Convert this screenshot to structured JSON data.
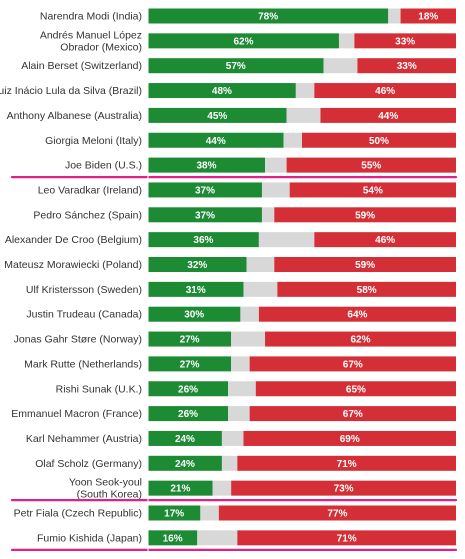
{
  "colors": {
    "approve": "#1d8a34",
    "neutral": "#d8d8d8",
    "disapprove": "#d42f36",
    "highlight": "#e0218a",
    "divider": "#ffffff"
  },
  "chart_data": {
    "type": "bar",
    "stacked": true,
    "orientation": "horizontal",
    "xlim": [
      0,
      100
    ],
    "highlighted": [
      "Joe Biden (U.S.)",
      "Yoon Seok-youl (South Korea)",
      "Fumio Kishida (Japan)"
    ],
    "categories": [
      "Narendra Modi (India)",
      "Andrés Manuel López Obrador (Mexico)",
      "Alain Berset (Switzerland)",
      "Luiz Inácio Lula da Silva (Brazil)",
      "Anthony Albanese (Australia)",
      "Giorgia Meloni (Italy)",
      "Joe Biden (U.S.)",
      "Leo Varadkar (Ireland)",
      "Pedro Sánchez (Spain)",
      "Alexander De Croo (Belgium)",
      "Mateusz Morawiecki (Poland)",
      "Ulf Kristersson (Sweden)",
      "Justin Trudeau (Canada)",
      "Jonas Gahr Støre (Norway)",
      "Mark Rutte (Netherlands)",
      "Rishi Sunak (U.K.)",
      "Emmanuel Macron (France)",
      "Karl Nehammer (Austria)",
      "Olaf Scholz (Germany)",
      "Yoon Seok-youl (South Korea)",
      "Petr Fiala (Czech Republic)",
      "Fumio Kishida (Japan)"
    ],
    "label_lines": [
      [
        "Narendra Modi (India)"
      ],
      [
        "Andrés Manuel López",
        "Obrador (Mexico)"
      ],
      [
        "Alain Berset (Switzerland)"
      ],
      [
        "Luiz Inácio Lula da Silva (Brazil)"
      ],
      [
        "Anthony Albanese (Australia)"
      ],
      [
        "Giorgia Meloni (Italy)"
      ],
      [
        "Joe Biden (U.S.)"
      ],
      [
        "Leo Varadkar (Ireland)"
      ],
      [
        "Pedro Sánchez (Spain)"
      ],
      [
        "Alexander De Croo (Belgium)"
      ],
      [
        "Mateusz Morawiecki (Poland)"
      ],
      [
        "Ulf Kristersson (Sweden)"
      ],
      [
        "Justin Trudeau (Canada)"
      ],
      [
        "Jonas Gahr Støre (Norway)"
      ],
      [
        "Mark Rutte (Netherlands)"
      ],
      [
        "Rishi Sunak (U.K.)"
      ],
      [
        "Emmanuel Macron (France)"
      ],
      [
        "Karl Nehammer (Austria)"
      ],
      [
        "Olaf Scholz (Germany)"
      ],
      [
        "Yoon Seok-youl",
        "(South Korea)"
      ],
      [
        "Petr Fiala (Czech Republic)"
      ],
      [
        "Fumio Kishida (Japan)"
      ]
    ],
    "series": [
      {
        "values": [
          78,
          62,
          57,
          48,
          45,
          44,
          38,
          37,
          37,
          36,
          32,
          31,
          30,
          27,
          27,
          26,
          26,
          24,
          24,
          21,
          17,
          16
        ]
      },
      {
        "values": [
          4,
          5,
          11,
          6,
          11,
          6,
          7,
          9,
          4,
          18,
          9,
          11,
          6,
          11,
          6,
          9,
          7,
          7,
          5,
          6,
          6,
          13
        ]
      },
      {
        "values": [
          18,
          33,
          33,
          46,
          44,
          50,
          55,
          54,
          59,
          46,
          59,
          58,
          64,
          62,
          67,
          65,
          67,
          69,
          71,
          73,
          77,
          71
        ]
      }
    ],
    "value_labels": [
      [
        "78%",
        "62%",
        "57%",
        "48%",
        "45%",
        "44%",
        "38%",
        "37%",
        "37%",
        "36%",
        "32%",
        "31%",
        "30%",
        "27%",
        "27%",
        "26%",
        "26%",
        "24%",
        "24%",
        "21%",
        "17%",
        "16%"
      ],
      [
        "18%",
        "33%",
        "33%",
        "46%",
        "44%",
        "50%",
        "55%",
        "54%",
        "59%",
        "46%",
        "59%",
        "58%",
        "64%",
        "62%",
        "67%",
        "65%",
        "67%",
        "69%",
        "71%",
        "73%",
        "77%",
        "71%"
      ]
    ]
  }
}
